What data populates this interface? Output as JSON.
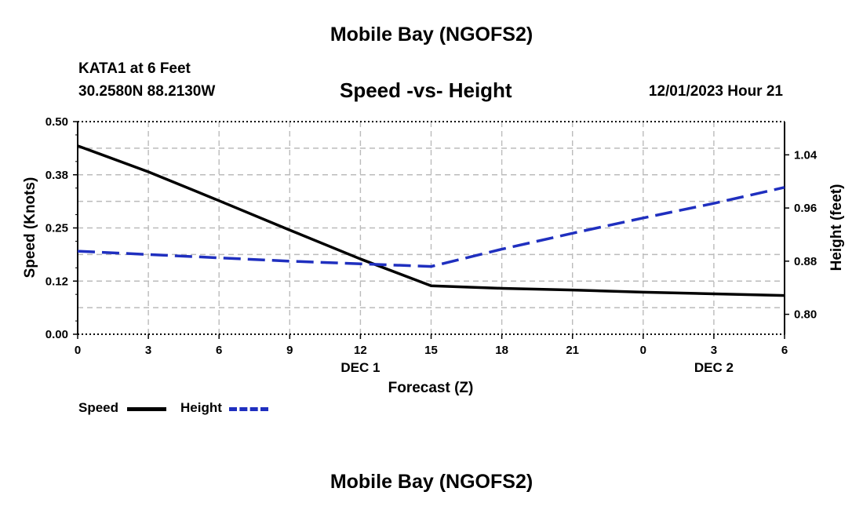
{
  "header": {
    "title": "Mobile Bay (NGOFS2)",
    "station": "KATA1 at 6 Feet",
    "coords": "30.2580N  88.2130W",
    "chart_title": "Speed -vs- Height",
    "datetime": "12/01/2023 Hour 21"
  },
  "footer": {
    "title": "Mobile Bay (NGOFS2)"
  },
  "legend": {
    "speed_label": "Speed",
    "height_label": "Height",
    "speed_color": "#000000",
    "height_color": "#1f2fbf"
  },
  "chart_data": {
    "type": "line",
    "title": "Speed -vs- Height",
    "xlabel": "Forecast (Z)",
    "ylabel": "Speed (Knots)",
    "y2label": "Height (feet)",
    "x_ticks": [
      "0",
      "3",
      "6",
      "9",
      "12",
      "15",
      "18",
      "21",
      "0",
      "3",
      "6"
    ],
    "x_tick_hours": [
      0,
      3,
      6,
      9,
      12,
      15,
      18,
      21,
      24,
      27,
      30
    ],
    "x_range": [
      0,
      30
    ],
    "date_labels": [
      {
        "label": "DEC 1",
        "hour": 12
      },
      {
        "label": "DEC 2",
        "hour": 27
      }
    ],
    "y_ticks": [
      "0.00",
      "0.12",
      "0.25",
      "0.38",
      "0.50"
    ],
    "y_tick_values": [
      0.0,
      0.125,
      0.25,
      0.375,
      0.5
    ],
    "ylim": [
      0,
      0.5
    ],
    "y2_ticks": [
      "0.80",
      "0.88",
      "0.96",
      "1.04"
    ],
    "y2_tick_values": [
      0.8,
      0.88,
      0.96,
      1.04
    ],
    "y2lim": [
      0.77,
      1.09
    ],
    "series": [
      {
        "name": "Speed",
        "axis": "left",
        "style": "solid",
        "color": "#000000",
        "x": [
          0,
          3,
          6,
          9,
          12,
          15,
          18,
          21,
          24,
          27,
          30
        ],
        "values": [
          0.443,
          0.382,
          0.314,
          0.245,
          0.177,
          0.114,
          0.108,
          0.104,
          0.099,
          0.095,
          0.091
        ]
      },
      {
        "name": "Height",
        "axis": "right",
        "style": "dashed",
        "color": "#1f2fbf",
        "x": [
          0,
          3,
          6,
          9,
          12,
          15,
          18,
          21,
          24,
          27,
          30
        ],
        "values": [
          0.895,
          0.89,
          0.885,
          0.88,
          0.876,
          0.872,
          0.898,
          0.922,
          0.945,
          0.967,
          0.991
        ]
      }
    ]
  }
}
